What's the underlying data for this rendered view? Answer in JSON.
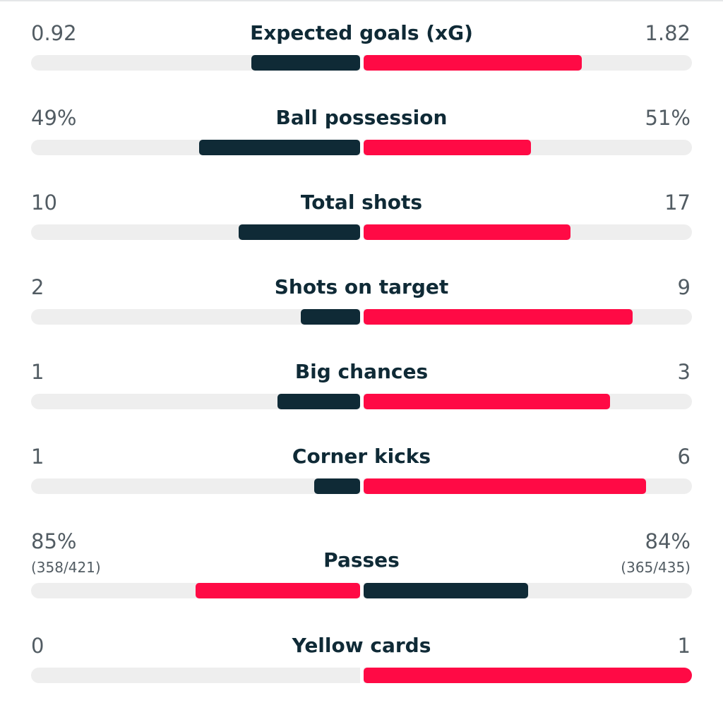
{
  "colors": {
    "home_bar": "#0f2a36",
    "away_bar": "#ff0a45",
    "track": "#eeeeee",
    "label_text": "#0f2a36",
    "value_text": "#525c63"
  },
  "stats": [
    {
      "label": "Expected goals (xG)",
      "home": "0.92",
      "away": "1.82",
      "home_fraction": 0.33,
      "away_fraction": 0.665,
      "home_color": "#0f2a36",
      "away_color": "#ff0a45"
    },
    {
      "label": "Ball possession",
      "home": "49%",
      "away": "51%",
      "home_fraction": 0.49,
      "away_fraction": 0.51,
      "home_color": "#0f2a36",
      "away_color": "#ff0a45"
    },
    {
      "label": "Total shots",
      "home": "10",
      "away": "17",
      "home_fraction": 0.37,
      "away_fraction": 0.63,
      "home_color": "#0f2a36",
      "away_color": "#ff0a45"
    },
    {
      "label": "Shots on target",
      "home": "2",
      "away": "9",
      "home_fraction": 0.18,
      "away_fraction": 0.82,
      "home_color": "#0f2a36",
      "away_color": "#ff0a45"
    },
    {
      "label": "Big chances",
      "home": "1",
      "away": "3",
      "home_fraction": 0.25,
      "away_fraction": 0.75,
      "home_color": "#0f2a36",
      "away_color": "#ff0a45"
    },
    {
      "label": "Corner kicks",
      "home": "1",
      "away": "6",
      "home_fraction": 0.14,
      "away_fraction": 0.86,
      "home_color": "#0f2a36",
      "away_color": "#ff0a45"
    },
    {
      "label": "Passes",
      "home": "85%",
      "away": "84%",
      "home_sub": "(358/421)",
      "away_sub": "(365/435)",
      "home_fraction": 0.5,
      "away_fraction": 0.5,
      "home_color": "#ff0a45",
      "away_color": "#0f2a36"
    },
    {
      "label": "Yellow cards",
      "home": "0",
      "away": "1",
      "home_fraction": 0.0,
      "away_fraction": 1.0,
      "home_color": "#0f2a36",
      "away_color": "#ff0a45"
    }
  ]
}
